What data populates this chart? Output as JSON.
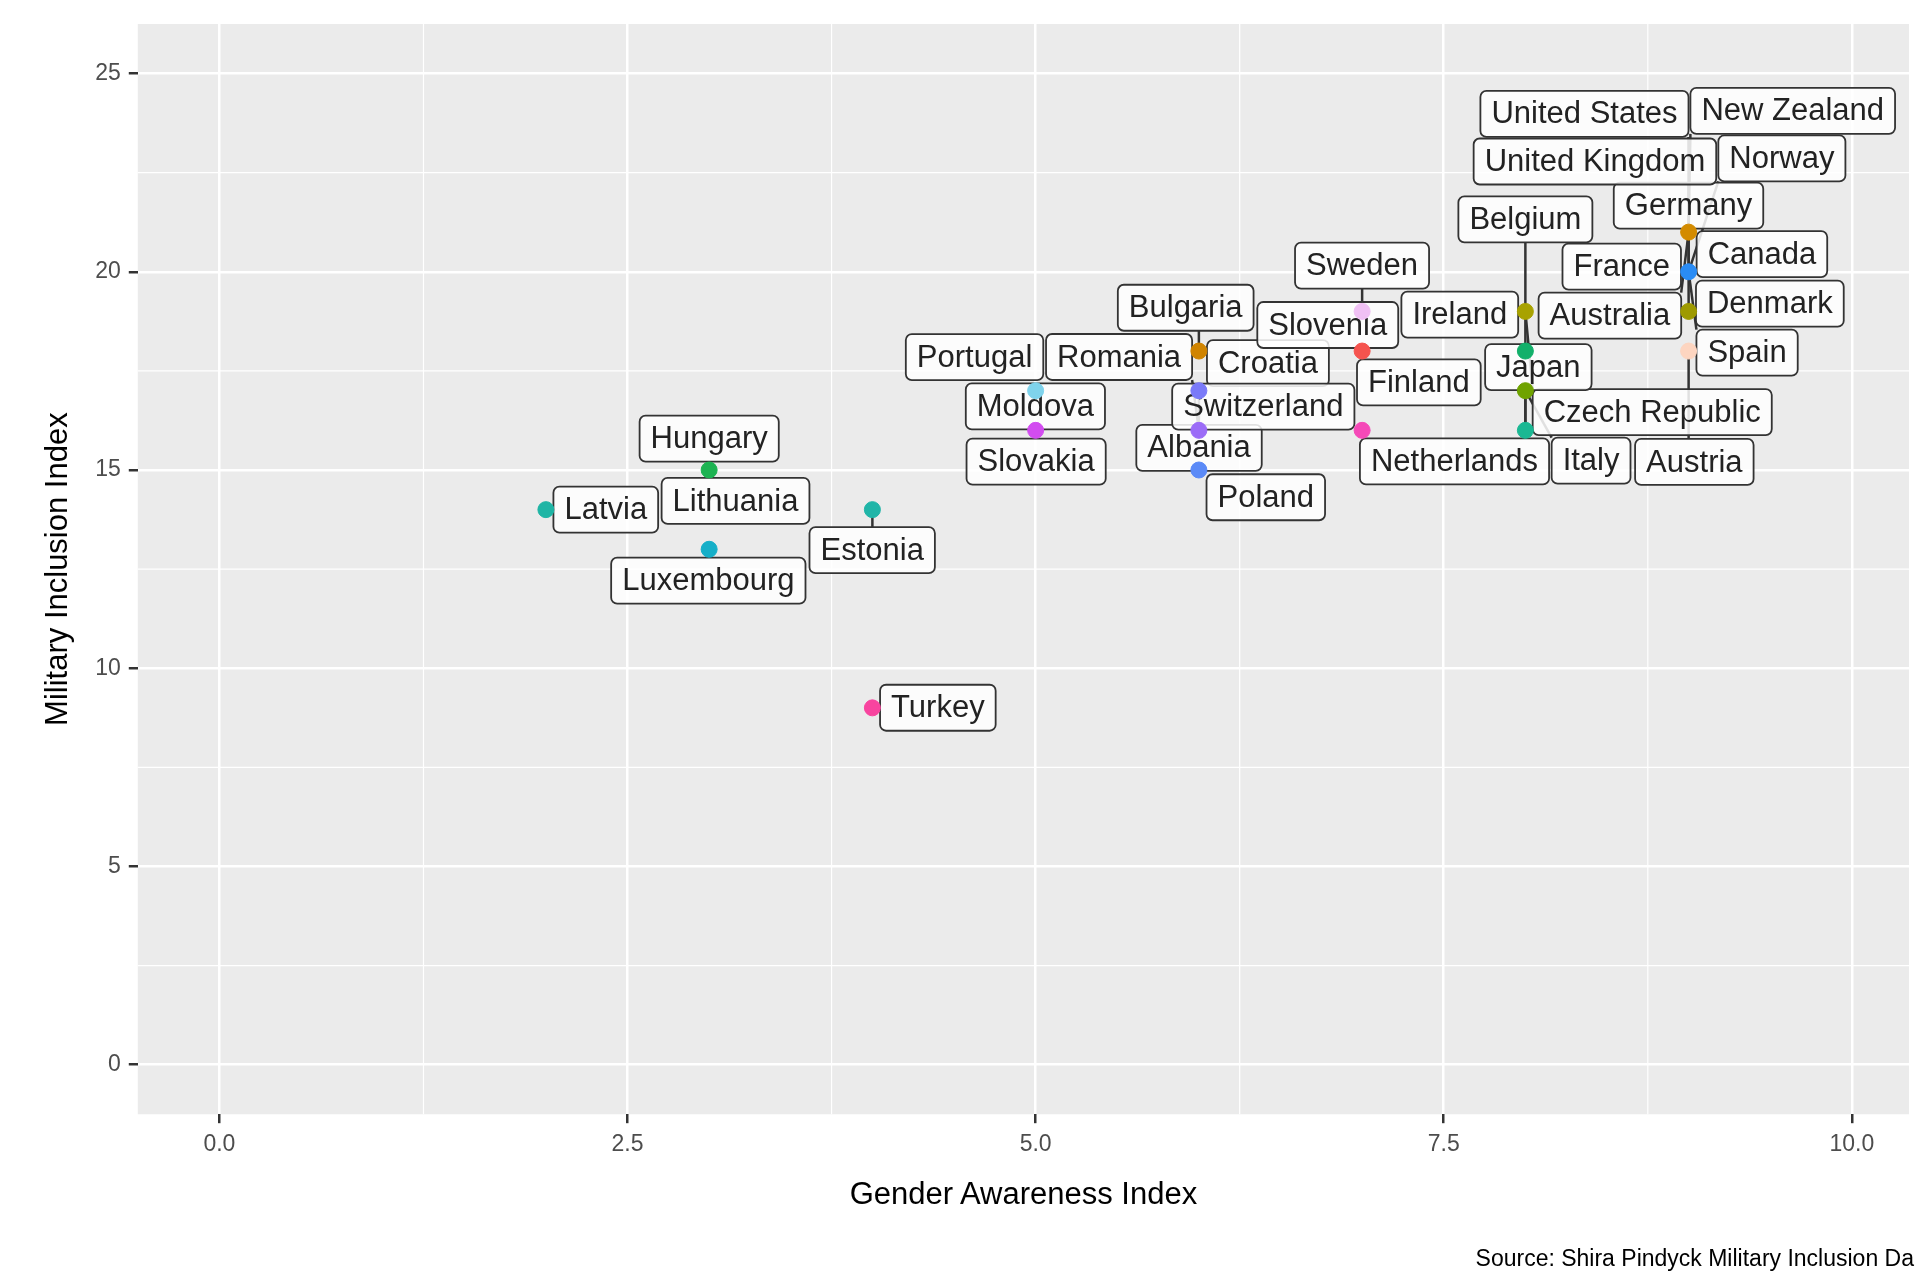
{
  "chart_data": {
    "type": "scatter",
    "xlabel": "Gender Awareness Index",
    "ylabel": "Military Inclusion Index",
    "x": [
      2,
      3,
      3,
      4,
      4,
      5,
      5,
      6,
      6,
      6,
      6,
      7,
      7,
      7,
      8,
      8,
      8,
      8,
      9,
      9,
      9,
      9
    ],
    "values": [
      14,
      13,
      15,
      14,
      9,
      17,
      16,
      18,
      17,
      16,
      15,
      19,
      18,
      16,
      19,
      18,
      17,
      16,
      21,
      20,
      19,
      18
    ],
    "colors": [
      "#1fb5a5",
      "#16afc8",
      "#1db352",
      "#20b5a8",
      "#f8449f",
      "#7fd3ec",
      "#d24cf0",
      "#d08400",
      "#7a7af8",
      "#9b6cf7",
      "#5b8af7",
      "#f0c0f4",
      "#f5534e",
      "#f549b8",
      "#a8a200",
      "#12b06a",
      "#6fa300",
      "#1ab893",
      "#d38b00",
      "#2a8cf5",
      "#9e9a00",
      "#fdd5c0"
    ],
    "xlim": [
      -0.5,
      10.35
    ],
    "ylim": [
      -1.25,
      26.25
    ],
    "xticks": [
      {
        "value": 0,
        "label": "0.0"
      },
      {
        "value": 2.5,
        "label": "2.5"
      },
      {
        "value": 5,
        "label": "5.0"
      },
      {
        "value": 7.5,
        "label": "7.5"
      },
      {
        "value": 10,
        "label": "10.0"
      }
    ],
    "yticks": [
      0,
      5,
      10,
      15,
      20,
      25
    ],
    "grid": true,
    "marker": "circle",
    "annotations": [
      {
        "text": "Latvia",
        "x": 2,
        "y": 14
      },
      {
        "text": "Luxembourg",
        "x": 3,
        "y": 13
      },
      {
        "text": "Hungary",
        "x": 3,
        "y": 15
      },
      {
        "text": "Lithuania",
        "x": 3,
        "y": 15
      },
      {
        "text": "Estonia",
        "x": 4,
        "y": 14
      },
      {
        "text": "Turkey",
        "x": 4,
        "y": 9
      },
      {
        "text": "Moldova",
        "x": 5,
        "y": 17
      },
      {
        "text": "Portugal",
        "x": 5,
        "y": 17
      },
      {
        "text": "Slovakia",
        "x": 5,
        "y": 16
      },
      {
        "text": "Bulgaria",
        "x": 6,
        "y": 18
      },
      {
        "text": "Croatia",
        "x": 6,
        "y": 17
      },
      {
        "text": "Albania",
        "x": 6,
        "y": 17
      },
      {
        "text": "Romania",
        "x": 6,
        "y": 16
      },
      {
        "text": "Poland",
        "x": 6,
        "y": 15
      },
      {
        "text": "Slovenia",
        "x": 7,
        "y": 19
      },
      {
        "text": "Sweden",
        "x": 7,
        "y": 19
      },
      {
        "text": "Finland",
        "x": 7,
        "y": 18
      },
      {
        "text": "Switzerland",
        "x": 7,
        "y": 16
      },
      {
        "text": "Czech Republic",
        "x": 8,
        "y": 19
      },
      {
        "text": "Belgium",
        "x": 8,
        "y": 18
      },
      {
        "text": "Ireland",
        "x": 8,
        "y": 19
      },
      {
        "text": "Italy",
        "x": 8,
        "y": 17
      },
      {
        "text": "Netherlands",
        "x": 8,
        "y": 17
      },
      {
        "text": "Japan",
        "x": 8,
        "y": 16
      },
      {
        "text": "Canada",
        "x": 9,
        "y": 21
      },
      {
        "text": "United States",
        "x": 9,
        "y": 21
      },
      {
        "text": "New Zealand",
        "x": 9,
        "y": 21
      },
      {
        "text": "Australia",
        "x": 9,
        "y": 21
      },
      {
        "text": "Germany",
        "x": 9,
        "y": 20
      },
      {
        "text": "Spain",
        "x": 9,
        "y": 20
      },
      {
        "text": "France",
        "x": 9,
        "y": 20
      },
      {
        "text": "Norway",
        "x": 9,
        "y": 20
      },
      {
        "text": "Denmark",
        "x": 9,
        "y": 19
      },
      {
        "text": "United Kingdom",
        "x": 9,
        "y": 19
      },
      {
        "text": "Austria",
        "x": 9,
        "y": 18
      },
      "Source: Shira Pindyck Military Inclusion Da"
    ]
  }
}
